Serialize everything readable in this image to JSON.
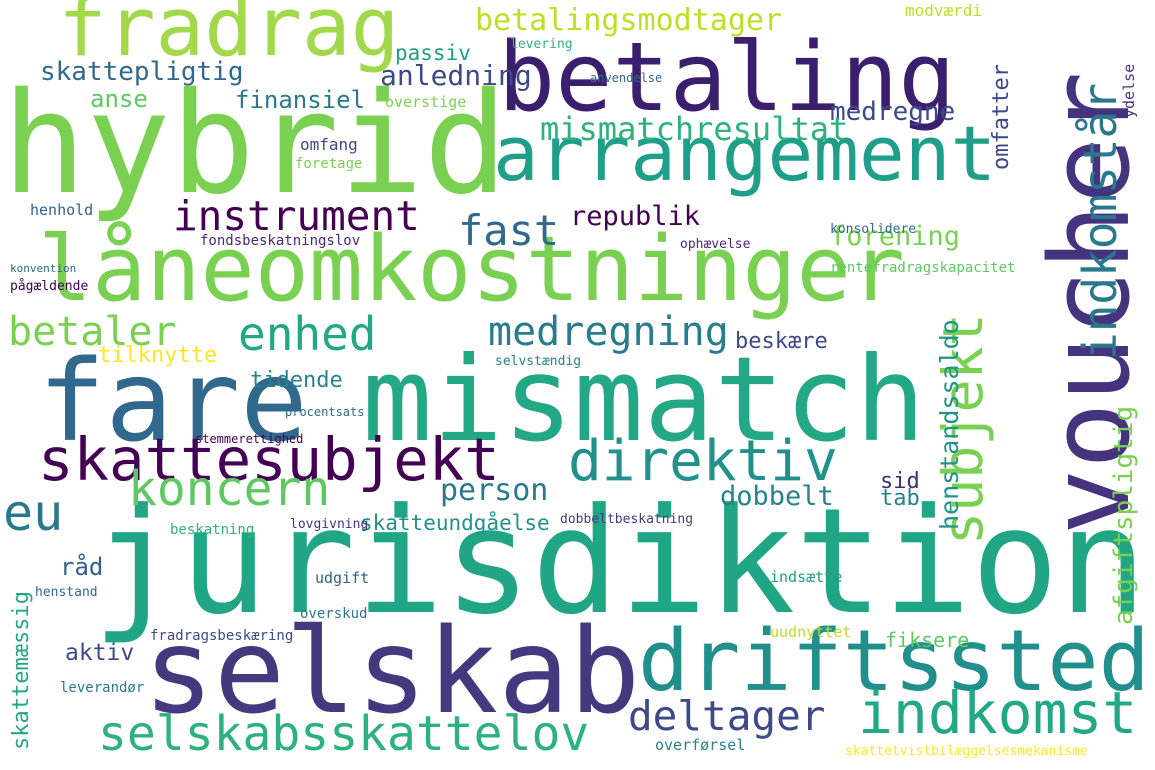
{
  "words": [
    "jurisdiktion",
    "hybrid",
    "låneomkostninger",
    "mismatch",
    "selskab",
    "voucher",
    "driftssted",
    "betaling",
    "arrangement",
    "fradrag",
    "fare",
    "skattesubjekt",
    "selskabsskattelov",
    "indkomst",
    "direktiv",
    "subjekt",
    "indkomstår",
    "instrument",
    "enhed",
    "koncern",
    "eu",
    "betaler",
    "medregning",
    "fast",
    "republik",
    "forening",
    "medregne",
    "betalingsmodtager",
    "mismatchresultat",
    "deltager",
    "person",
    "dobbelt",
    "skattepligtig",
    "passiv",
    "anledning",
    "anse",
    "finansiel",
    "tidende",
    "beskære",
    "tab",
    "sid",
    "aktiv",
    "råd",
    "skatteundgåelse",
    "henstandssaldo",
    "afgiftspligtig",
    "omfatter",
    "tilknytte",
    "modværdi",
    "skattemæssig",
    "omfang",
    "foretage",
    "fondsbeskatningslov",
    "henhold",
    "skattetvistbilæggelsesmekanisme",
    "dobbeltbeskatning",
    "beskatning",
    "lovgivning",
    "fiksere",
    "overskud",
    "udgift",
    "henstand",
    "leverandør",
    "selvstændig",
    "ophævelse",
    "rentefradragskapacitet",
    "konsolidere",
    "indsætte",
    "uudnyttet",
    "overførsel",
    "fradragsbeskæring",
    "levering",
    "anvendelse",
    "overstige",
    "pågældende",
    "konvention",
    "ydelse",
    "stemmerettighed",
    "procentsats"
  ]
}
